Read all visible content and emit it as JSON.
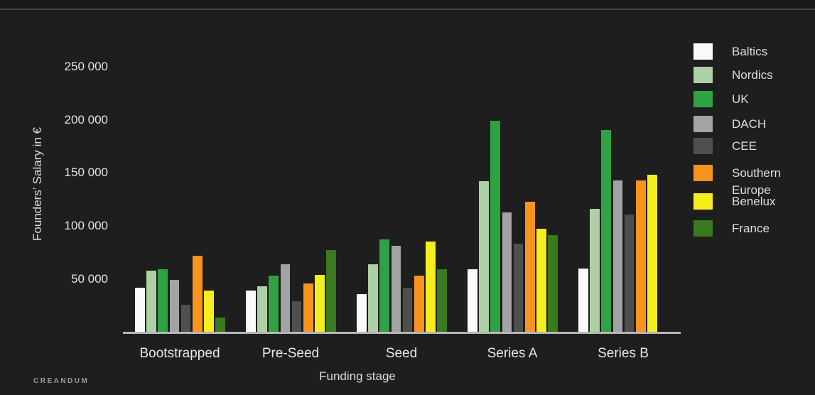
{
  "branding": {
    "logo": "CREANDUM"
  },
  "chart_data": {
    "type": "bar",
    "title": "",
    "xlabel": "Funding stage",
    "ylabel": "Founders’ Salary in €",
    "categories": [
      "Bootstrapped",
      "Pre-Seed",
      "Seed",
      "Series A",
      "Series B"
    ],
    "series": [
      {
        "name": "Baltics",
        "color": "#fafafa",
        "values": [
          42000,
          39000,
          36000,
          59000,
          60000
        ]
      },
      {
        "name": "Nordics",
        "color": "#aed0a4",
        "values": [
          58000,
          43000,
          64000,
          142000,
          116000
        ]
      },
      {
        "name": "UK",
        "color": "#2fa344",
        "values": [
          59000,
          53000,
          87000,
          199000,
          190000
        ]
      },
      {
        "name": "DACH",
        "color": "#a3a3a3",
        "values": [
          49000,
          64000,
          81000,
          113000,
          143000
        ]
      },
      {
        "name": "CEE",
        "color": "#4f4f4f",
        "values": [
          26000,
          29000,
          42000,
          83000,
          111000
        ]
      },
      {
        "name": "Southern Europe",
        "color": "#f7941d",
        "values": [
          72000,
          46000,
          53000,
          123000,
          143000
        ]
      },
      {
        "name": "Benelux",
        "color": "#f5ee1f",
        "values": [
          39000,
          54000,
          85000,
          97000,
          148000
        ]
      },
      {
        "name": "France",
        "color": "#3a7a1f",
        "values": [
          14000,
          77000,
          59000,
          91000,
          null
        ]
      }
    ],
    "y_ticks": [
      {
        "value": 50000,
        "label": "50 000"
      },
      {
        "value": 100000,
        "label": "100 000"
      },
      {
        "value": 150000,
        "label": "150 000"
      },
      {
        "value": 200000,
        "label": "200 000"
      },
      {
        "value": 250000,
        "label": "250 000"
      }
    ],
    "ylim": [
      0,
      280000
    ],
    "grid": false,
    "legend_position": "right"
  }
}
